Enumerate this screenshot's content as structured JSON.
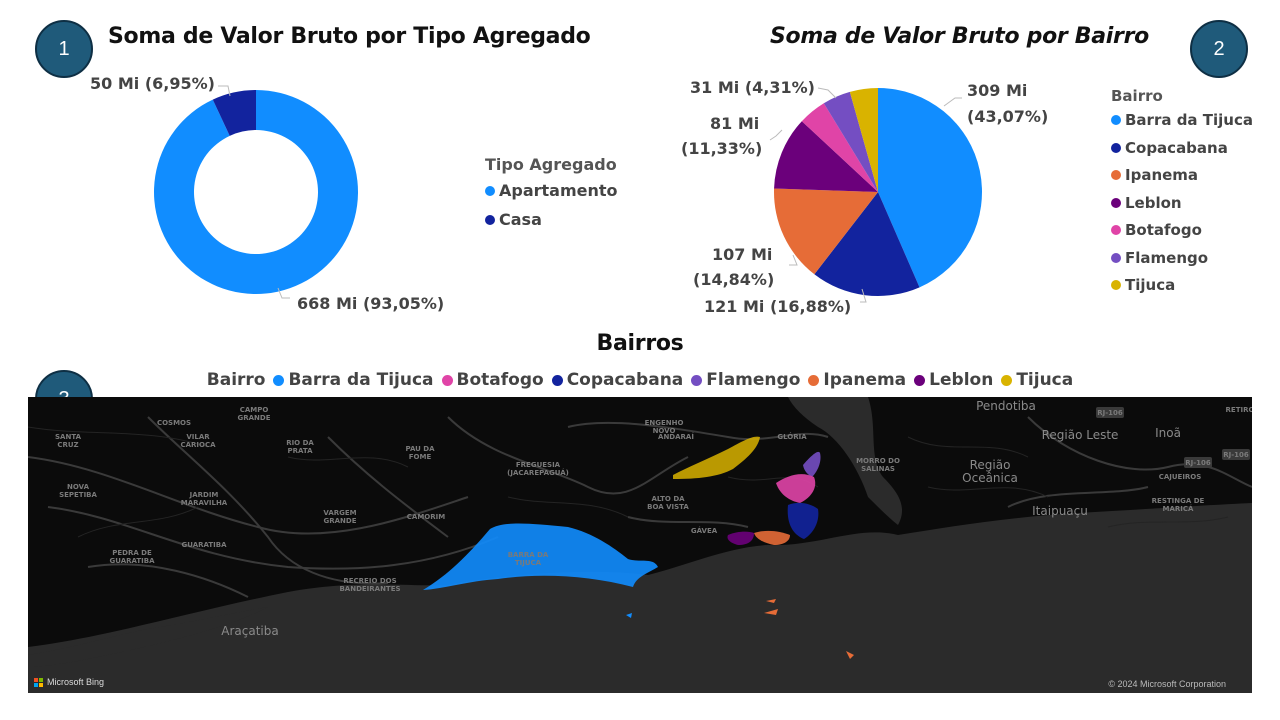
{
  "badges": {
    "b1": "1",
    "b2": "2",
    "b3": "3"
  },
  "chart_data": [
    {
      "type": "pie",
      "variant": "donut",
      "title": "Soma de Valor Bruto por Tipo Agregado",
      "legend_title": "Tipo Agregado",
      "legend_position": "right",
      "categories": [
        "Apartamento",
        "Casa"
      ],
      "values": [
        668,
        50
      ],
      "labels": [
        "668 Mi (93,05%)",
        "50 Mi (6,95%)"
      ],
      "colors": [
        "#118dff",
        "#12239e"
      ]
    },
    {
      "type": "pie",
      "title": "Soma de Valor Bruto por Bairro",
      "legend_title": "Bairro",
      "legend_position": "right",
      "categories": [
        "Barra da Tijuca",
        "Copacabana",
        "Ipanema",
        "Leblon",
        "Botafogo",
        "Flamengo",
        "Tijuca"
      ],
      "values": [
        309,
        121,
        107,
        81,
        31,
        31,
        31
      ],
      "percent": [
        43.07,
        16.88,
        14.84,
        11.33,
        4.31,
        4.31,
        4.31
      ],
      "labels": {
        "barra": [
          "309 Mi",
          "(43,07%)"
        ],
        "copa": "121 Mi (16,88%)",
        "ipanema": [
          "107 Mi",
          "(14,84%)"
        ],
        "leblon": [
          "81 Mi",
          "(11,33%)"
        ],
        "small": "31 Mi (4,31%)"
      },
      "colors": [
        "#118dff",
        "#12239e",
        "#e66c37",
        "#6b007b",
        "#e044a7",
        "#744ec2",
        "#d9b300"
      ]
    }
  ],
  "map": {
    "title": "Bairros",
    "legend_title": "Bairro",
    "legend": [
      "Barra da Tijuca",
      "Botafogo",
      "Copacabana",
      "Flamengo",
      "Ipanema",
      "Leblon",
      "Tijuca"
    ],
    "legend_colors": [
      "#118dff",
      "#e044a7",
      "#12239e",
      "#744ec2",
      "#e66c37",
      "#6b007b",
      "#d9b300"
    ],
    "places": [
      "SANTA CRUZ",
      "COSMOS",
      "CAMPO GRANDE",
      "VILAR CARIOCA",
      "RIO DA PRATA",
      "PAU DA FOME",
      "FREGUESIA (JACAREPAGUÁ)",
      "ANDARAÍ",
      "ENGENHO NOVO",
      "GLÓRIA",
      "NOVA SEPETIBA",
      "JARDIM MARAVILHA",
      "ALTO DA BOA VISTA",
      "VARGEM GRANDE",
      "CAMORIM",
      "GUARATIBA",
      "PEDRA DE GUARATIBA",
      "RECREIO DOS BANDEIRANTES",
      "BARRA DA TIJUCA",
      "GÁVEA",
      "MORRO DO SALINAS",
      "CAJUEIROS",
      "RESTINGA DE MARICÁ"
    ],
    "big_places": [
      "Pendotiba",
      "Região Leste",
      "Inoã",
      "Região Oceânica",
      "Itaipuaçu",
      "Araçatiba"
    ],
    "roads": [
      "RJ-106",
      "RJ-106",
      "RJ-106"
    ],
    "retiro": "RETIRO",
    "credit_left": "Microsoft Bing",
    "credit_right": "© 2024 Microsoft Corporation"
  }
}
